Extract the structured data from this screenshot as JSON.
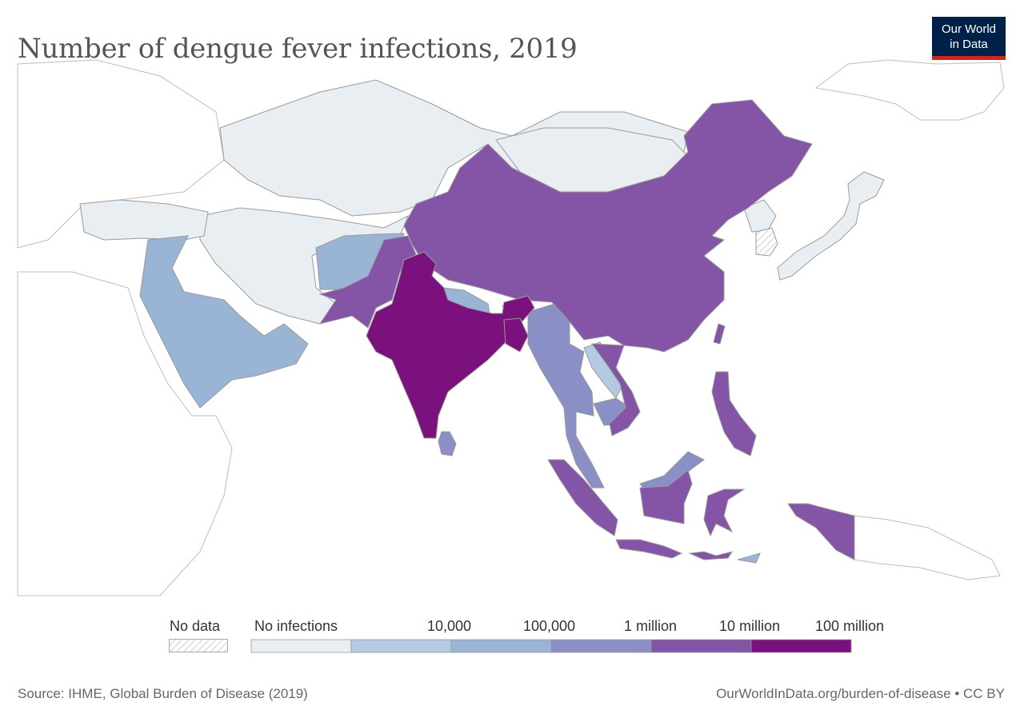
{
  "title": "Number of dengue fever infections, 2019",
  "logo": {
    "line1": "Our World",
    "line2": "in Data"
  },
  "legend": {
    "no_data_label": "No data",
    "no_infections_label": "No infections",
    "bins": [
      {
        "label": "",
        "color": "#e8eef2"
      },
      {
        "label": "",
        "color": "#b4cae2"
      },
      {
        "label": "10,000",
        "color": "#9ab4d6"
      },
      {
        "label": "100,000",
        "color": "#8a8fc6"
      },
      {
        "label": "1 million",
        "color": "#8454a6"
      },
      {
        "label": "10 million",
        "color": "#7b117c"
      }
    ],
    "max_label": "100 million"
  },
  "colors": {
    "no_infections": "#e8eef2",
    "bin_lt10k": "#b4cae2",
    "bin_10k_100k": "#9ab4d6",
    "bin_100k_1m": "#8a8fc6",
    "bin_1m_10m": "#8454a6",
    "bin_10m_100m": "#7b117c",
    "outside": "#ffffff",
    "border": "#9a9a9a"
  },
  "footer": {
    "source": "Source: IHME, Global Burden of Disease (2019)",
    "credit": "OurWorldInData.org/burden-of-disease • CC BY"
  }
}
